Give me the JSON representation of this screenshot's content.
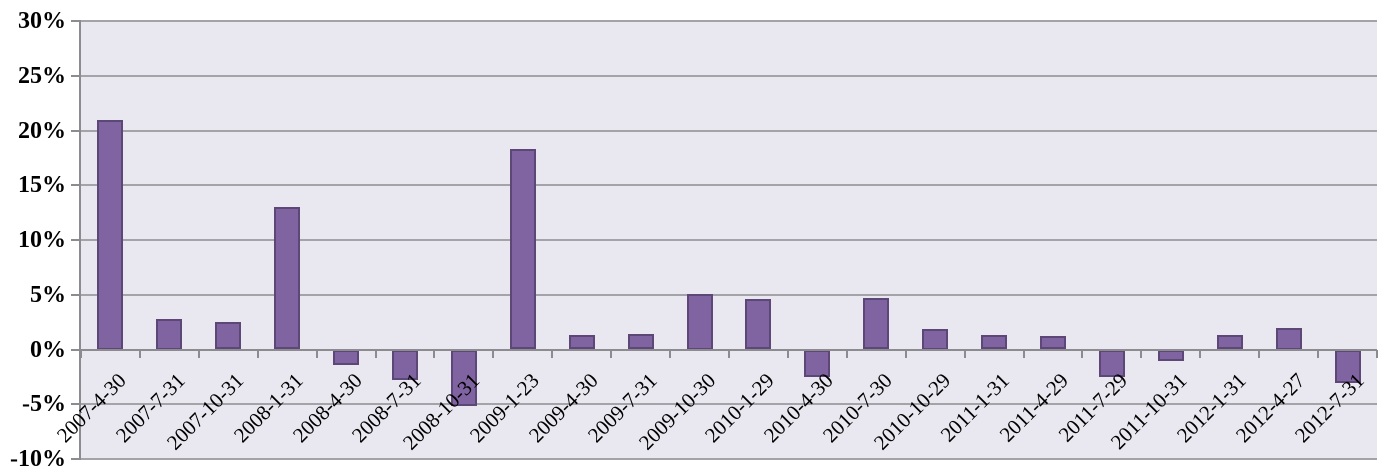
{
  "chart_data": {
    "type": "bar",
    "title": "",
    "xlabel": "",
    "ylabel": "",
    "categories": [
      "2007-4-30",
      "2007-7-31",
      "2007-10-31",
      "2008-1-31",
      "2008-4-30",
      "2008-7-31",
      "2008-10-31",
      "2009-1-23",
      "2009-4-30",
      "2009-7-31",
      "2009-10-30",
      "2010-1-29",
      "2010-4-30",
      "2010-7-30",
      "2010-10-29",
      "2011-1-31",
      "2011-4-29",
      "2011-7-29",
      "2011-10-31",
      "2012-1-31",
      "2012-4-27",
      "2012-7-31"
    ],
    "values": [
      21.0,
      2.8,
      2.5,
      13.0,
      -1.4,
      -2.7,
      -5.1,
      18.3,
      1.3,
      1.4,
      5.1,
      4.6,
      -2.5,
      4.7,
      1.9,
      1.3,
      1.2,
      -2.5,
      -1.0,
      1.3,
      2.0,
      -3.0
    ],
    "ylim": [
      -10,
      30
    ],
    "ytick_step": 5,
    "ytick_labels": [
      "30%",
      "25%",
      "20%",
      "15%",
      "10%",
      "5%",
      "0%",
      "-5%",
      "-10%"
    ],
    "grid": true,
    "legend": false,
    "colors": {
      "bar_fill": "#8064A2",
      "bar_border": "#5D4776",
      "plot_bg": "#E9E8F0",
      "gridline": "#A3A3A8",
      "axis_line": "#8C8C90",
      "text": "#000000"
    }
  }
}
